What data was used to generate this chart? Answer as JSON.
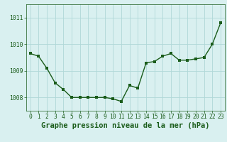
{
  "x": [
    0,
    1,
    2,
    3,
    4,
    5,
    6,
    7,
    8,
    9,
    10,
    11,
    12,
    13,
    14,
    15,
    16,
    17,
    18,
    19,
    20,
    21,
    22,
    23
  ],
  "y": [
    1009.65,
    1009.55,
    1009.1,
    1008.55,
    1008.3,
    1008.0,
    1008.0,
    1008.0,
    1008.0,
    1008.0,
    1007.95,
    1007.85,
    1008.45,
    1008.35,
    1009.3,
    1009.35,
    1009.55,
    1009.65,
    1009.4,
    1009.4,
    1009.45,
    1009.5,
    1010.0,
    1010.8
  ],
  "line_color": "#1a5c1a",
  "marker_color": "#1a5c1a",
  "bg_color": "#d9f0f0",
  "grid_color": "#b0d8d8",
  "text_color": "#1a5c1a",
  "xlabel": "Graphe pression niveau de la mer (hPa)",
  "ylim_min": 1007.5,
  "ylim_max": 1011.5,
  "xlim_min": -0.5,
  "xlim_max": 23.5,
  "yticks": [
    1008,
    1009,
    1010,
    1011
  ],
  "xticks": [
    0,
    1,
    2,
    3,
    4,
    5,
    6,
    7,
    8,
    9,
    10,
    11,
    12,
    13,
    14,
    15,
    16,
    17,
    18,
    19,
    20,
    21,
    22,
    23
  ],
  "tick_fontsize": 5.8,
  "xlabel_fontsize": 7.5,
  "marker_size": 2.5,
  "linewidth": 1.0
}
